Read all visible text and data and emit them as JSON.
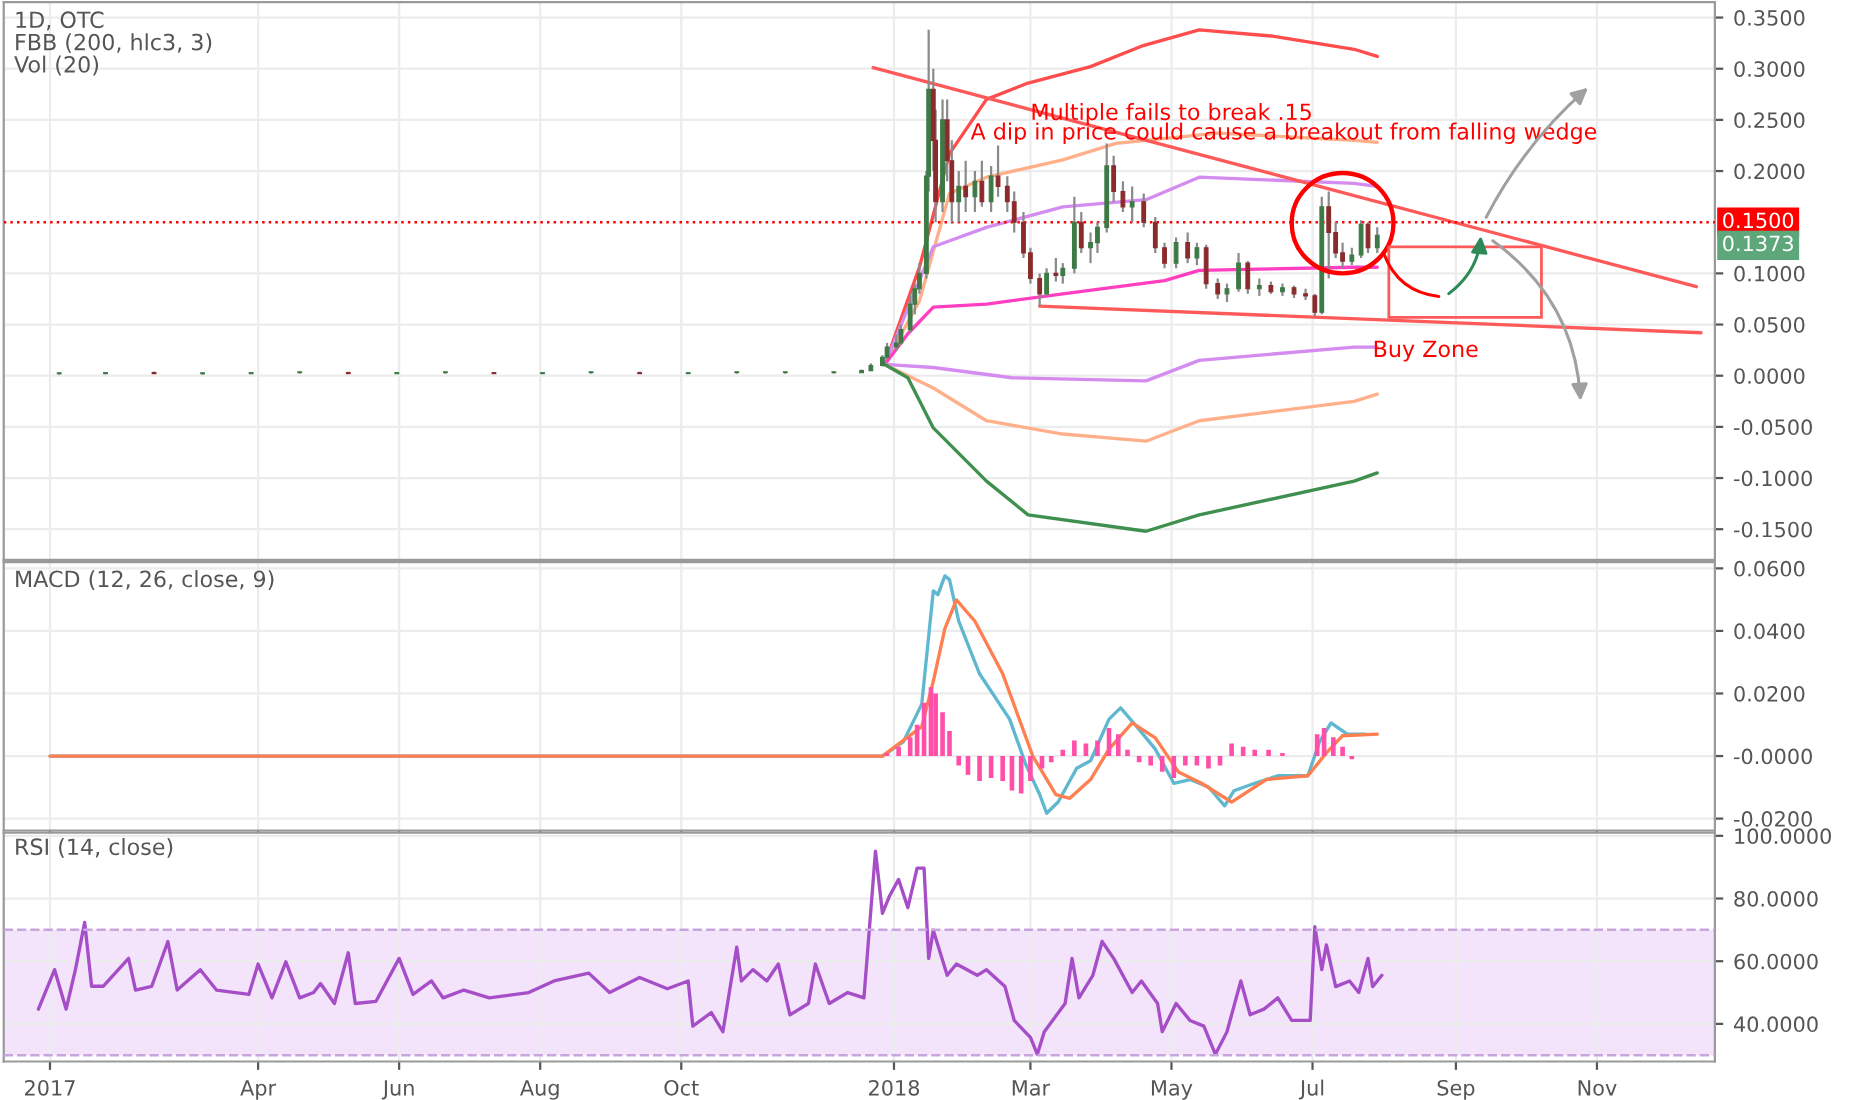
{
  "chart_data": [
    {
      "type": "candlestick",
      "title": "1D, OTC",
      "grid": true,
      "xlim": [
        "2016-12-12",
        "2018-12-22"
      ],
      "tick_labels": "y",
      "ylim": [
        -0.18,
        0.365
      ],
      "yticks": [
        {
          "value": -0.15,
          "label": "-0.1500"
        },
        {
          "value": -0.1,
          "label": "-0.1000"
        },
        {
          "value": -0.05,
          "label": "-0.0500"
        },
        {
          "value": 0,
          "label": "0.0000"
        },
        {
          "value": 0.05,
          "label": "0.0500"
        },
        {
          "value": 0.1,
          "label": "0.1000"
        },
        {
          "value": 0.2,
          "label": "0.2000"
        },
        {
          "value": 0.25,
          "label": "0.2500"
        },
        {
          "value": 0.3,
          "label": "0.3000"
        },
        {
          "value": 0.35,
          "label": "0.3500"
        }
      ],
      "x": [
        "2017-01-05",
        "2017-01-25",
        "2017-02-15",
        "2017-03-08",
        "2017-03-29",
        "2017-04-19",
        "2017-05-10",
        "2017-05-31",
        "2017-06-21",
        "2017-07-12",
        "2017-08-02",
        "2017-08-23",
        "2017-09-13",
        "2017-10-04",
        "2017-10-25",
        "2017-11-15",
        "2017-12-06",
        "2017-12-18",
        "2017-12-22",
        "2017-12-27",
        "2017-12-29",
        "2018-01-02",
        "2018-01-04",
        "2018-01-08",
        "2018-01-10",
        "2018-01-12",
        "2018-01-15",
        "2018-01-16",
        "2018-01-18",
        "2018-01-19",
        "2018-01-22",
        "2018-01-24",
        "2018-01-26",
        "2018-01-29",
        "2018-02-01",
        "2018-02-05",
        "2018-02-08",
        "2018-02-12",
        "2018-02-15",
        "2018-02-19",
        "2018-02-22",
        "2018-02-26",
        "2018-03-01",
        "2018-03-05",
        "2018-03-08",
        "2018-03-12",
        "2018-03-15",
        "2018-03-20",
        "2018-03-23",
        "2018-03-27",
        "2018-03-30",
        "2018-04-03",
        "2018-04-06",
        "2018-04-10",
        "2018-04-14",
        "2018-04-19",
        "2018-04-24",
        "2018-04-28",
        "2018-05-03",
        "2018-05-08",
        "2018-05-12",
        "2018-05-16",
        "2018-05-21",
        "2018-05-25",
        "2018-05-30",
        "2018-06-03",
        "2018-06-08",
        "2018-06-13",
        "2018-06-18",
        "2018-06-23",
        "2018-06-28",
        "2018-07-02",
        "2018-07-05",
        "2018-07-08",
        "2018-07-11",
        "2018-07-14",
        "2018-07-18",
        "2018-07-22",
        "2018-07-25",
        "2018-07-29"
      ],
      "ohlc": [
        [
          0.002,
          0.003,
          0.001,
          0.002
        ],
        [
          0.002,
          0.003,
          0.002,
          0.003
        ],
        [
          0.003,
          0.004,
          0.002,
          0.002
        ],
        [
          0.002,
          0.003,
          0.001,
          0.002
        ],
        [
          0.002,
          0.003,
          0.002,
          0.003
        ],
        [
          0.003,
          0.004,
          0.002,
          0.003
        ],
        [
          0.003,
          0.004,
          0.002,
          0.002
        ],
        [
          0.002,
          0.003,
          0.002,
          0.003
        ],
        [
          0.003,
          0.004,
          0.002,
          0.003
        ],
        [
          0.003,
          0.003,
          0.002,
          0.002
        ],
        [
          0.002,
          0.003,
          0.002,
          0.003
        ],
        [
          0.003,
          0.004,
          0.002,
          0.003
        ],
        [
          0.003,
          0.004,
          0.002,
          0.002
        ],
        [
          0.002,
          0.003,
          0.002,
          0.003
        ],
        [
          0.003,
          0.004,
          0.002,
          0.003
        ],
        [
          0.003,
          0.004,
          0.002,
          0.003
        ],
        [
          0.003,
          0.004,
          0.002,
          0.003
        ],
        [
          0.003,
          0.006,
          0.003,
          0.005
        ],
        [
          0.005,
          0.012,
          0.005,
          0.01
        ],
        [
          0.01,
          0.02,
          0.009,
          0.018
        ],
        [
          0.018,
          0.032,
          0.016,
          0.028
        ],
        [
          0.028,
          0.04,
          0.024,
          0.032
        ],
        [
          0.032,
          0.05,
          0.03,
          0.045
        ],
        [
          0.045,
          0.08,
          0.042,
          0.07
        ],
        [
          0.07,
          0.09,
          0.06,
          0.085
        ],
        [
          0.085,
          0.11,
          0.08,
          0.1
        ],
        [
          0.1,
          0.2,
          0.095,
          0.195
        ],
        [
          0.195,
          0.338,
          0.18,
          0.28
        ],
        [
          0.28,
          0.3,
          0.2,
          0.23
        ],
        [
          0.23,
          0.26,
          0.15,
          0.17
        ],
        [
          0.17,
          0.27,
          0.16,
          0.25
        ],
        [
          0.25,
          0.27,
          0.19,
          0.21
        ],
        [
          0.21,
          0.23,
          0.15,
          0.17
        ],
        [
          0.17,
          0.2,
          0.15,
          0.185
        ],
        [
          0.185,
          0.21,
          0.16,
          0.175
        ],
        [
          0.175,
          0.2,
          0.16,
          0.19
        ],
        [
          0.19,
          0.21,
          0.165,
          0.17
        ],
        [
          0.17,
          0.205,
          0.16,
          0.195
        ],
        [
          0.195,
          0.225,
          0.175,
          0.185
        ],
        [
          0.185,
          0.195,
          0.16,
          0.17
        ],
        [
          0.17,
          0.18,
          0.14,
          0.15
        ],
        [
          0.15,
          0.16,
          0.115,
          0.12
        ],
        [
          0.12,
          0.125,
          0.09,
          0.095
        ],
        [
          0.095,
          0.1,
          0.068,
          0.08
        ],
        [
          0.08,
          0.105,
          0.078,
          0.1
        ],
        [
          0.1,
          0.115,
          0.092,
          0.098
        ],
        [
          0.098,
          0.11,
          0.09,
          0.105
        ],
        [
          0.105,
          0.175,
          0.1,
          0.15
        ],
        [
          0.15,
          0.16,
          0.12,
          0.125
        ],
        [
          0.125,
          0.14,
          0.11,
          0.13
        ],
        [
          0.13,
          0.15,
          0.12,
          0.145
        ],
        [
          0.145,
          0.227,
          0.14,
          0.205
        ],
        [
          0.205,
          0.215,
          0.17,
          0.18
        ],
        [
          0.18,
          0.19,
          0.16,
          0.165
        ],
        [
          0.165,
          0.185,
          0.15,
          0.17
        ],
        [
          0.17,
          0.178,
          0.145,
          0.15
        ],
        [
          0.15,
          0.155,
          0.12,
          0.125
        ],
        [
          0.125,
          0.13,
          0.105,
          0.11
        ],
        [
          0.11,
          0.135,
          0.105,
          0.13
        ],
        [
          0.13,
          0.14,
          0.11,
          0.115
        ],
        [
          0.115,
          0.13,
          0.108,
          0.125
        ],
        [
          0.125,
          0.128,
          0.085,
          0.09
        ],
        [
          0.09,
          0.095,
          0.075,
          0.08
        ],
        [
          0.08,
          0.09,
          0.072,
          0.085
        ],
        [
          0.085,
          0.12,
          0.082,
          0.11
        ],
        [
          0.11,
          0.112,
          0.08,
          0.085
        ],
        [
          0.085,
          0.095,
          0.078,
          0.088
        ],
        [
          0.088,
          0.092,
          0.08,
          0.082
        ],
        [
          0.082,
          0.09,
          0.078,
          0.086
        ],
        [
          0.086,
          0.088,
          0.076,
          0.08
        ],
        [
          0.08,
          0.085,
          0.074,
          0.078
        ],
        [
          0.078,
          0.08,
          0.058,
          0.062
        ],
        [
          0.062,
          0.175,
          0.06,
          0.165
        ],
        [
          0.165,
          0.18,
          0.095,
          0.14
        ],
        [
          0.14,
          0.15,
          0.115,
          0.12
        ],
        [
          0.12,
          0.13,
          0.105,
          0.112
        ],
        [
          0.112,
          0.125,
          0.108,
          0.118
        ],
        [
          0.118,
          0.152,
          0.115,
          0.148
        ],
        [
          0.148,
          0.15,
          0.12,
          0.125
        ],
        [
          0.125,
          0.145,
          0.12,
          0.1373
        ]
      ],
      "series": [
        {
          "type": "line",
          "color": "#ff4d4d",
          "x": [
            "2017-12-28",
            "2018-01-12",
            "2018-01-25",
            "2018-02-10",
            "2018-02-28",
            "2018-03-27",
            "2018-04-18",
            "2018-05-13",
            "2018-06-13",
            "2018-07-19",
            "2018-07-29"
          ],
          "values": [
            0.011,
            0.106,
            0.217,
            0.27,
            0.286,
            0.302,
            0.322,
            0.338,
            0.332,
            0.319,
            0.312
          ]
        },
        {
          "type": "line",
          "color": "#ffb08a",
          "x": [
            "2017-12-28",
            "2018-01-12",
            "2018-01-25",
            "2018-02-10",
            "2018-03-15",
            "2018-04-07",
            "2018-05-21",
            "2018-07-19",
            "2018-07-29"
          ],
          "values": [
            0.011,
            0.073,
            0.178,
            0.194,
            0.211,
            0.227,
            0.237,
            0.23,
            0.228
          ]
        },
        {
          "type": "line",
          "color": "#d58cf0",
          "x": [
            "2017-12-28",
            "2018-01-18",
            "2018-02-10",
            "2018-03-15",
            "2018-04-20",
            "2018-05-13",
            "2018-07-19",
            "2018-07-29"
          ],
          "values": [
            0.011,
            0.126,
            0.145,
            0.165,
            0.172,
            0.194,
            0.188,
            0.185
          ]
        },
        {
          "type": "line",
          "color": "#ff3fc0",
          "x": [
            "2017-12-28",
            "2018-01-07",
            "2018-01-18",
            "2018-02-10",
            "2018-03-15",
            "2018-04-28",
            "2018-05-13",
            "2018-07-19",
            "2018-07-29"
          ],
          "values": [
            0.011,
            0.041,
            0.067,
            0.07,
            0.08,
            0.093,
            0.103,
            0.106,
            0.106
          ]
        },
        {
          "type": "line",
          "color": "#d58cf0",
          "x": [
            "2017-12-28",
            "2018-01-18",
            "2018-02-21",
            "2018-04-20",
            "2018-05-13",
            "2018-07-19",
            "2018-07-29"
          ],
          "values": [
            0.011,
            0.008,
            -0.002,
            -0.005,
            0.015,
            0.028,
            0.028
          ]
        },
        {
          "type": "line",
          "color": "#ffb08a",
          "x": [
            "2017-12-28",
            "2018-01-18",
            "2018-02-10",
            "2018-03-15",
            "2018-04-20",
            "2018-05-13",
            "2018-07-19",
            "2018-07-29"
          ],
          "values": [
            0.011,
            -0.012,
            -0.044,
            -0.057,
            -0.064,
            -0.044,
            -0.025,
            -0.018
          ]
        },
        {
          "type": "line",
          "color": "#3f8f4f",
          "x": [
            "2017-12-28",
            "2018-01-07",
            "2018-01-18",
            "2018-02-10",
            "2018-02-28",
            "2018-04-20",
            "2018-05-13",
            "2018-07-19",
            "2018-07-29"
          ],
          "values": [
            0.011,
            -0.002,
            -0.051,
            -0.103,
            -0.136,
            -0.152,
            -0.136,
            -0.103,
            -0.095
          ]
        },
        {
          "type": "line",
          "color": "#ff5a5a",
          "x": [
            "2017-12-23",
            "2018-12-14"
          ],
          "values": [
            0.301,
            0.087
          ]
        },
        {
          "type": "line",
          "color": "#ff5a5a",
          "x": [
            "2018-03-05",
            "2018-12-16"
          ],
          "values": [
            0.068,
            0.042
          ]
        }
      ],
      "ref_lines": [
        {
          "axis": "y",
          "value": 0.15,
          "label": "0.1500",
          "color": "#ff0000",
          "line_style": "dotted"
        }
      ],
      "annotations": [
        "FBB (200, hlc3, 3)",
        "Vol (20)",
        "Multiple fails to break .15",
        "A dip in price could cause a breakout from falling wedge",
        "Buy Zone",
        "0.1373"
      ]
    },
    {
      "type": "bar",
      "title": "MACD (12, 26, close, 9)",
      "grid": true,
      "xlim": [
        "2016-12-12",
        "2018-12-22"
      ],
      "tick_labels": "y",
      "ylim": [
        -0.0238,
        0.062
      ],
      "yticks": [
        {
          "value": -0.02,
          "label": "-0.0200"
        },
        {
          "value": 0,
          "label": "-0.0000"
        },
        {
          "value": 0.02,
          "label": "0.0200"
        },
        {
          "value": 0.04,
          "label": "0.0400"
        },
        {
          "value": 0.06,
          "label": "0.0600"
        }
      ],
      "series": [
        {
          "type": "bar",
          "color": "#ff4fa8",
          "x": [
            "2017-12-29",
            "2018-01-03",
            "2018-01-08",
            "2018-01-11",
            "2018-01-14",
            "2018-01-17",
            "2018-01-19",
            "2018-01-22",
            "2018-01-25",
            "2018-01-29",
            "2018-02-02",
            "2018-02-07",
            "2018-02-12",
            "2018-02-17",
            "2018-02-21",
            "2018-02-25",
            "2018-03-01",
            "2018-03-06",
            "2018-03-10",
            "2018-03-15",
            "2018-03-20",
            "2018-03-25",
            "2018-03-30",
            "2018-04-04",
            "2018-04-08",
            "2018-04-12",
            "2018-04-17",
            "2018-04-22",
            "2018-04-27",
            "2018-05-02",
            "2018-05-07",
            "2018-05-12",
            "2018-05-17",
            "2018-05-22",
            "2018-05-27",
            "2018-06-01",
            "2018-06-06",
            "2018-06-12",
            "2018-06-18",
            "2018-07-03",
            "2018-07-06",
            "2018-07-10",
            "2018-07-14",
            "2018-07-18"
          ],
          "values": [
            0.001,
            0.003,
            0.006,
            0.01,
            0.017,
            0.022,
            0.02,
            0.014,
            0.008,
            -0.003,
            -0.006,
            -0.008,
            -0.007,
            -0.008,
            -0.011,
            -0.012,
            -0.008,
            -0.004,
            -0.002,
            0.002,
            0.005,
            0.004,
            0.005,
            0.009,
            0.007,
            0.002,
            -0.002,
            -0.003,
            -0.005,
            -0.007,
            -0.003,
            -0.003,
            -0.004,
            -0.003,
            0.004,
            0.003,
            0.002,
            0.002,
            0.001,
            0.007,
            0.009,
            0.006,
            0.003,
            -0.001
          ]
        },
        {
          "type": "line",
          "color": "#5fb8d0",
          "x": [
            "2017-01-01",
            "2017-12-27",
            "2018-01-05",
            "2018-01-13",
            "2018-01-18",
            "2018-01-20",
            "2018-01-23",
            "2018-01-25",
            "2018-01-29",
            "2018-02-07",
            "2018-02-20",
            "2018-02-27",
            "2018-03-05",
            "2018-03-08",
            "2018-03-13",
            "2018-03-21",
            "2018-03-27",
            "2018-04-04",
            "2018-04-09",
            "2018-04-16",
            "2018-04-24",
            "2018-05-02",
            "2018-05-09",
            "2018-05-17",
            "2018-05-24",
            "2018-05-28",
            "2018-06-06",
            "2018-06-16",
            "2018-06-29",
            "2018-07-04",
            "2018-07-09",
            "2018-07-16",
            "2018-07-24"
          ],
          "values": [
            0,
            0,
            0.0045,
            0.0166,
            0.0528,
            0.0516,
            0.0576,
            0.0564,
            0.0431,
            0.0263,
            0.0118,
            -0.0027,
            -0.0123,
            -0.0183,
            -0.0147,
            -0.0039,
            -0.0015,
            0.0118,
            0.0154,
            0.0094,
            0.0022,
            -0.0087,
            -0.0075,
            -0.0099,
            -0.0159,
            -0.0111,
            -0.0087,
            -0.0063,
            -0.0063,
            0.0045,
            0.0106,
            0.007,
            0.007
          ]
        },
        {
          "type": "line",
          "color": "#ff7f50",
          "x": [
            "2017-01-01",
            "2017-12-27",
            "2018-01-13",
            "2018-01-18",
            "2018-01-23",
            "2018-01-28",
            "2018-02-05",
            "2018-02-17",
            "2018-03-02",
            "2018-03-12",
            "2018-03-18",
            "2018-03-27",
            "2018-04-04",
            "2018-04-14",
            "2018-04-24",
            "2018-05-04",
            "2018-05-14",
            "2018-05-27",
            "2018-06-11",
            "2018-06-29",
            "2018-07-07",
            "2018-07-14",
            "2018-07-29"
          ],
          "values": [
            0,
            0,
            0.0094,
            0.0239,
            0.0407,
            0.0499,
            0.0431,
            0.0263,
            0,
            -0.0123,
            -0.0135,
            -0.0075,
            0.0022,
            0.0106,
            0.0058,
            -0.0051,
            -0.0087,
            -0.0147,
            -0.0075,
            -0.0063,
            0.001,
            0.0065,
            0.007
          ]
        }
      ]
    },
    {
      "type": "line",
      "title": "RSI (14, close)",
      "grid": true,
      "xlim": [
        "2016-12-12",
        "2018-12-22"
      ],
      "xticks": [
        {
          "value": "2017-01-01",
          "label": "2017"
        },
        {
          "value": "2017-04-01",
          "label": "Apr"
        },
        {
          "value": "2017-06-01",
          "label": "Jun"
        },
        {
          "value": "2017-08-01",
          "label": "Aug"
        },
        {
          "value": "2017-10-01",
          "label": "Oct"
        },
        {
          "value": "2018-01-01",
          "label": "2018"
        },
        {
          "value": "2018-03-01",
          "label": "Mar"
        },
        {
          "value": "2018-05-01",
          "label": "May"
        },
        {
          "value": "2018-07-01",
          "label": "Jul"
        },
        {
          "value": "2018-09-01",
          "label": "Sep"
        },
        {
          "value": "2018-11-01",
          "label": "Nov"
        }
      ],
      "ylim": [
        28,
        101
      ],
      "yticks": [
        {
          "value": 40,
          "label": "40.0000"
        },
        {
          "value": 60,
          "label": "60.0000"
        },
        {
          "value": 80,
          "label": "80.0000"
        },
        {
          "value": 100,
          "label": "100.0000"
        }
      ],
      "bands": [
        {
          "axis": "y",
          "from": 30,
          "to": 70,
          "color": "#f3e4fb"
        }
      ],
      "ref_lines": [
        {
          "axis": "y",
          "value": 30,
          "color": "#c9a5dd",
          "line_style": "dashed"
        },
        {
          "axis": "y",
          "value": 70,
          "color": "#c9a5dd",
          "line_style": "dashed"
        }
      ],
      "series": [
        {
          "type": "line",
          "color": "#a64dc8",
          "x": [
            "2016-12-27",
            "2017-01-03",
            "2017-01-08",
            "2017-01-12",
            "2017-01-16",
            "2017-01-19",
            "2017-01-24",
            "2017-02-04",
            "2017-02-07",
            "2017-02-14",
            "2017-02-21",
            "2017-02-25",
            "2017-03-07",
            "2017-03-14",
            "2017-03-28",
            "2017-04-01",
            "2017-04-07",
            "2017-04-13",
            "2017-04-19",
            "2017-04-25",
            "2017-04-28",
            "2017-05-04",
            "2017-05-10",
            "2017-05-13",
            "2017-05-22",
            "2017-06-01",
            "2017-06-07",
            "2017-06-15",
            "2017-06-20",
            "2017-06-29",
            "2017-07-10",
            "2017-07-27",
            "2017-08-07",
            "2017-08-22",
            "2017-08-31",
            "2017-09-13",
            "2017-09-25",
            "2017-10-04",
            "2017-10-06",
            "2017-10-14",
            "2017-10-19",
            "2017-10-25",
            "2017-10-27",
            "2017-11-01",
            "2017-11-07",
            "2017-11-12",
            "2017-11-17",
            "2017-11-25",
            "2017-11-28",
            "2017-12-04",
            "2017-12-12",
            "2017-12-19",
            "2017-12-24",
            "2017-12-27",
            "2017-12-30",
            "2018-01-03",
            "2018-01-07",
            "2018-01-11",
            "2018-01-14",
            "2018-01-16",
            "2018-01-18",
            "2018-01-24",
            "2018-01-28",
            "2018-02-06",
            "2018-02-10",
            "2018-02-18",
            "2018-02-22",
            "2018-03-01",
            "2018-03-04",
            "2018-03-07",
            "2018-03-16",
            "2018-03-19",
            "2018-03-22",
            "2018-03-28",
            "2018-04-01",
            "2018-04-06",
            "2018-04-14",
            "2018-04-18",
            "2018-04-25",
            "2018-04-27",
            "2018-05-03",
            "2018-05-09",
            "2018-05-15",
            "2018-05-20",
            "2018-05-25",
            "2018-05-31",
            "2018-06-04",
            "2018-06-10",
            "2018-06-16",
            "2018-06-22",
            "2018-06-30",
            "2018-07-02",
            "2018-07-05",
            "2018-07-07",
            "2018-07-11",
            "2018-07-17",
            "2018-07-21",
            "2018-07-25",
            "2018-07-27",
            "2018-07-31"
          ],
          "values": [
            44.7,
            57.3,
            44.7,
            57.3,
            72.4,
            52,
            52,
            60.9,
            50.8,
            52,
            66.3,
            50.8,
            57.3,
            50.8,
            49.4,
            59.1,
            48.3,
            59.8,
            48.3,
            50,
            52.9,
            46.5,
            62.7,
            46.5,
            47.2,
            60.9,
            49.4,
            53.7,
            48.3,
            50.8,
            48.3,
            50,
            53.7,
            56.2,
            50,
            54.8,
            51.2,
            53.7,
            39.3,
            43.6,
            37.5,
            64.5,
            53.7,
            57.3,
            53.7,
            59.1,
            42.9,
            46.5,
            59.1,
            46.5,
            50,
            48.3,
            95.1,
            75.3,
            80.7,
            86.1,
            77.1,
            89.7,
            89.7,
            60.9,
            69.9,
            55.5,
            59.1,
            55.5,
            57.3,
            51.9,
            41.1,
            35.7,
            30.3,
            37.5,
            46.5,
            60.9,
            48.3,
            55.5,
            66.3,
            60.9,
            50,
            53.7,
            46.5,
            37.5,
            46.5,
            41.1,
            39.3,
            30.3,
            37.5,
            53.7,
            42.9,
            44.7,
            48.3,
            41.1,
            41.1,
            71,
            57.3,
            65.2,
            51.9,
            53.7,
            50,
            60.9,
            51.9,
            55.5
          ]
        }
      ]
    }
  ]
}
